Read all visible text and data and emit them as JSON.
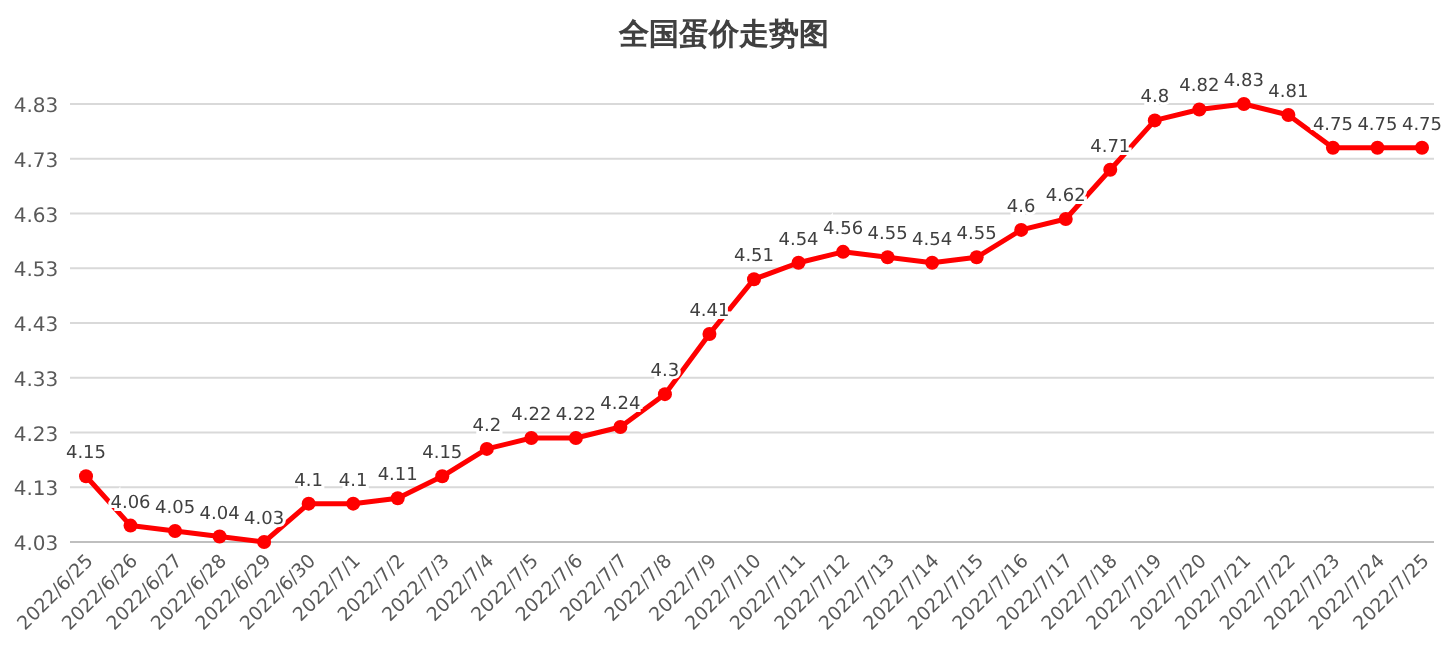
{
  "chart_data": {
    "type": "line",
    "title": "全国蛋价走势图",
    "categories": [
      "2022/6/25",
      "2022/6/26",
      "2022/6/27",
      "2022/6/28",
      "2022/6/29",
      "2022/6/30",
      "2022/7/1",
      "2022/7/2",
      "2022/7/3",
      "2022/7/4",
      "2022/7/5",
      "2022/7/6",
      "2022/7/7",
      "2022/7/8",
      "2022/7/9",
      "2022/7/10",
      "2022/7/11",
      "2022/7/12",
      "2022/7/13",
      "2022/7/14",
      "2022/7/15",
      "2022/7/16",
      "2022/7/17",
      "2022/7/18",
      "2022/7/19",
      "2022/7/20",
      "2022/7/21",
      "2022/7/22",
      "2022/7/23",
      "2022/7/24",
      "2022/7/25"
    ],
    "series": [
      {
        "color": "#ff0000",
        "values": [
          4.15,
          4.06,
          4.05,
          4.04,
          4.03,
          4.1,
          4.1,
          4.11,
          4.15,
          4.2,
          4.22,
          4.22,
          4.24,
          4.3,
          4.41,
          4.51,
          4.54,
          4.56,
          4.55,
          4.54,
          4.55,
          4.6,
          4.62,
          4.71,
          4.8,
          4.82,
          4.83,
          4.81,
          4.75,
          4.75,
          4.75
        ]
      }
    ],
    "ylim": [
      4.03,
      4.83
    ],
    "yticks": [
      4.03,
      4.13,
      4.23,
      4.33,
      4.43,
      4.53,
      4.63,
      4.73,
      4.83
    ],
    "grid": "y",
    "marker": "circle",
    "line_style": "solid",
    "data_labels": true
  }
}
